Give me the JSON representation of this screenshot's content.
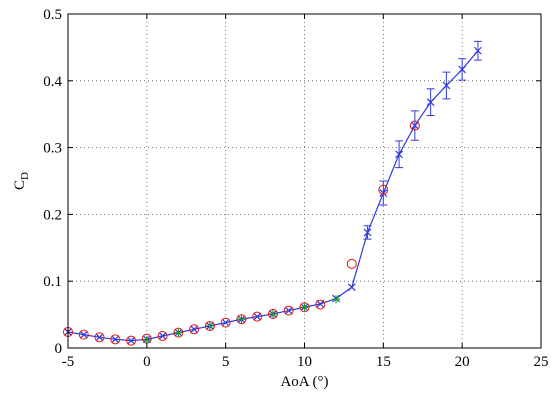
{
  "chart_data": {
    "type": "line",
    "xlabel": "AoA (°)",
    "ylabel": {
      "main": "C",
      "sub": "D"
    },
    "xlim": [
      -5,
      25
    ],
    "ylim": [
      0,
      0.5
    ],
    "xticks": [
      -5,
      0,
      5,
      10,
      15,
      20,
      25
    ],
    "yticks": [
      0,
      0.1,
      0.2,
      0.3,
      0.4,
      0.5
    ],
    "xtick_labels": [
      "-5",
      "0",
      "5",
      "10",
      "15",
      "20",
      "25"
    ],
    "ytick_labels": [
      "0",
      "0.1",
      "0.2",
      "0.3",
      "0.4",
      "0.5"
    ],
    "grid": true,
    "series": [
      {
        "marker": "x-with-errorbars",
        "color": "#2f3bd6",
        "x": [
          -5,
          -4,
          -3,
          -2,
          -1,
          0,
          1,
          2,
          3,
          4,
          5,
          6,
          7,
          8,
          9,
          10,
          11,
          12,
          13,
          14,
          15,
          16,
          17,
          18,
          19,
          20,
          21
        ],
        "y": [
          0.024,
          0.02,
          0.016,
          0.013,
          0.011,
          0.013,
          0.018,
          0.023,
          0.028,
          0.033,
          0.038,
          0.043,
          0.047,
          0.051,
          0.056,
          0.061,
          0.066,
          0.074,
          0.091,
          0.173,
          0.232,
          0.29,
          0.333,
          0.368,
          0.393,
          0.417,
          0.445
        ],
        "err": [
          0.002,
          0.002,
          0.002,
          0.002,
          0.002,
          0.002,
          0.002,
          0.002,
          0.002,
          0.002,
          0.002,
          0.002,
          0.002,
          0.002,
          0.002,
          0.002,
          0.003,
          0.003,
          0.004,
          0.01,
          0.018,
          0.02,
          0.022,
          0.02,
          0.02,
          0.016,
          0.014
        ]
      },
      {
        "marker": "circle",
        "color": "#e01818",
        "x": [
          -5,
          -4,
          -3,
          -2,
          -1,
          0,
          1,
          2,
          3,
          4,
          5,
          6,
          7,
          8,
          9,
          10,
          11,
          13,
          15,
          17
        ],
        "y": [
          0.024,
          0.02,
          0.016,
          0.013,
          0.011,
          0.014,
          0.018,
          0.023,
          0.028,
          0.033,
          0.038,
          0.043,
          0.047,
          0.051,
          0.056,
          0.061,
          0.065,
          0.126,
          0.237,
          0.333
        ]
      },
      {
        "marker": "plus",
        "color": "#14a014",
        "x": [
          0,
          2,
          4,
          6,
          8,
          10,
          12
        ],
        "y": [
          0.012,
          0.023,
          0.033,
          0.043,
          0.051,
          0.061,
          0.073
        ]
      }
    ]
  }
}
